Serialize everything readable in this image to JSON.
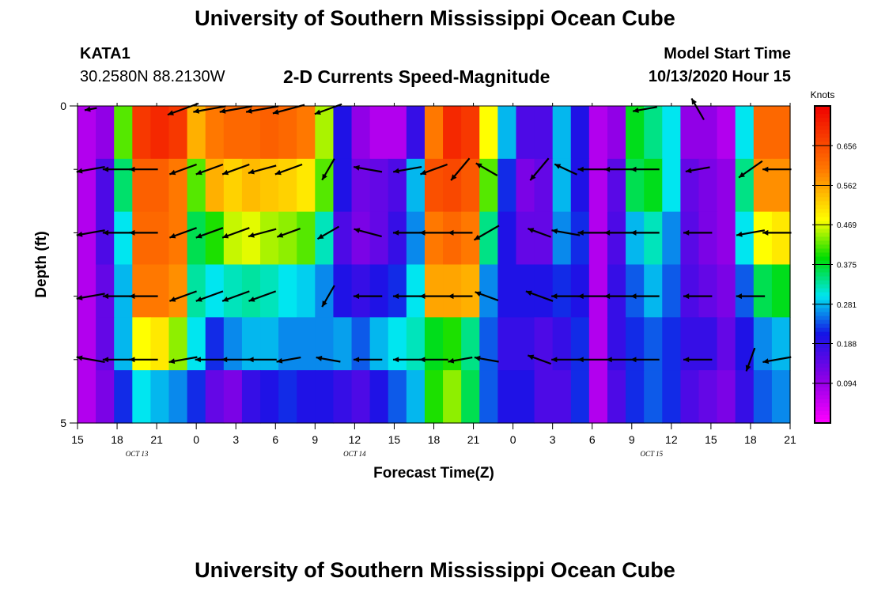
{
  "header": {
    "title": "University of Southern Mississippi Ocean Cube",
    "station": "KATA1",
    "coords": "30.2580N 88.2130W",
    "subtitle": "2-D Currents Speed-Magnitude",
    "model_start_label": "Model Start Time",
    "model_start_value": "10/13/2020 Hour 15"
  },
  "footer": {
    "title": "University of Southern Mississippi Ocean Cube"
  },
  "chart_data": {
    "type": "heatmap",
    "title": "2-D Currents Speed-Magnitude",
    "xlabel": "Forecast Time(Z)",
    "ylabel": "Depth (ft)",
    "x_ticks": [
      "15",
      "18",
      "21",
      "0",
      "3",
      "6",
      "9",
      "12",
      "15",
      "18",
      "21",
      "0",
      "3",
      "6",
      "9",
      "12",
      "15",
      "18",
      "21"
    ],
    "date_labels": [
      {
        "label": "OCT 13",
        "tick_index": 1.5
      },
      {
        "label": "OCT 14",
        "tick_index": 7
      },
      {
        "label": "OCT 15",
        "tick_index": 14.5
      }
    ],
    "y_ticks": [
      "0",
      "5"
    ],
    "ylim": [
      0,
      5
    ],
    "x_hours": [
      0,
      54
    ],
    "colorbar": {
      "unit": "Knots",
      "range": [
        0.0,
        0.75
      ],
      "tick_labels": [
        "0.656",
        "0.562",
        "0.469",
        "0.375",
        "0.281",
        "0.188",
        "0.094"
      ],
      "tick_values": [
        0.656,
        0.562,
        0.469,
        0.375,
        0.281,
        0.188,
        0.094
      ]
    },
    "speed_profiles": [
      [
        0.07,
        0.1,
        0.42,
        0.68,
        0.7,
        0.68,
        0.55,
        0.6,
        0.62,
        0.62,
        0.63,
        0.62,
        0.6,
        0.45,
        0.2,
        0.1,
        0.07,
        0.07,
        0.18,
        0.6,
        0.7,
        0.68,
        0.48,
        0.28,
        0.16,
        0.16,
        0.28,
        0.2,
        0.07,
        0.1,
        0.38,
        0.34,
        0.3,
        0.1,
        0.1,
        0.07,
        0.3,
        0.62,
        0.62
      ],
      [
        0.07,
        0.16,
        0.35,
        0.63,
        0.63,
        0.6,
        0.42,
        0.55,
        0.52,
        0.54,
        0.53,
        0.52,
        0.5,
        0.42,
        0.2,
        0.13,
        0.14,
        0.16,
        0.28,
        0.65,
        0.66,
        0.64,
        0.42,
        0.22,
        0.12,
        0.14,
        0.28,
        0.2,
        0.07,
        0.15,
        0.36,
        0.38,
        0.3,
        0.14,
        0.12,
        0.1,
        0.34,
        0.58,
        0.58
      ],
      [
        0.07,
        0.16,
        0.3,
        0.62,
        0.62,
        0.6,
        0.36,
        0.4,
        0.46,
        0.47,
        0.45,
        0.44,
        0.42,
        0.32,
        0.16,
        0.12,
        0.14,
        0.18,
        0.26,
        0.6,
        0.62,
        0.6,
        0.34,
        0.2,
        0.14,
        0.14,
        0.26,
        0.22,
        0.07,
        0.16,
        0.28,
        0.32,
        0.26,
        0.15,
        0.12,
        0.1,
        0.3,
        0.48,
        0.5
      ],
      [
        0.07,
        0.14,
        0.28,
        0.6,
        0.6,
        0.58,
        0.33,
        0.3,
        0.32,
        0.33,
        0.32,
        0.3,
        0.29,
        0.26,
        0.2,
        0.18,
        0.2,
        0.22,
        0.3,
        0.56,
        0.56,
        0.55,
        0.26,
        0.2,
        0.2,
        0.2,
        0.22,
        0.2,
        0.07,
        0.18,
        0.24,
        0.28,
        0.24,
        0.16,
        0.14,
        0.12,
        0.24,
        0.36,
        0.38
      ],
      [
        0.07,
        0.14,
        0.28,
        0.48,
        0.5,
        0.44,
        0.3,
        0.22,
        0.26,
        0.28,
        0.28,
        0.26,
        0.26,
        0.26,
        0.27,
        0.24,
        0.28,
        0.3,
        0.32,
        0.38,
        0.4,
        0.34,
        0.24,
        0.18,
        0.18,
        0.16,
        0.18,
        0.22,
        0.07,
        0.18,
        0.22,
        0.24,
        0.22,
        0.18,
        0.18,
        0.14,
        0.2,
        0.26,
        0.28
      ],
      [
        0.07,
        0.12,
        0.22,
        0.3,
        0.28,
        0.26,
        0.22,
        0.14,
        0.12,
        0.18,
        0.2,
        0.22,
        0.2,
        0.2,
        0.18,
        0.16,
        0.2,
        0.24,
        0.28,
        0.4,
        0.44,
        0.36,
        0.24,
        0.2,
        0.2,
        0.16,
        0.16,
        0.22,
        0.07,
        0.16,
        0.22,
        0.24,
        0.22,
        0.16,
        0.14,
        0.12,
        0.18,
        0.24,
        0.26
      ]
    ],
    "vector_rows_depth_ft": [
      0,
      1,
      2,
      3,
      4,
      5
    ],
    "vector_hours": [
      1,
      3,
      5,
      8,
      10,
      12,
      14,
      16,
      19,
      22,
      25,
      27,
      29,
      31,
      35,
      37,
      39,
      41,
      43,
      47,
      49,
      51,
      53
    ],
    "vector_angles_deg": [
      [
        190,
        185,
        190,
        200,
        190,
        190,
        190,
        195,
        200,
        0,
        180,
        180,
        0,
        0,
        0,
        0,
        0,
        0,
        190,
        120,
        0,
        0,
        0
      ],
      [
        190,
        180,
        180,
        200,
        200,
        200,
        195,
        200,
        240,
        170,
        190,
        200,
        230,
        150,
        230,
        155,
        180,
        180,
        180,
        190,
        0,
        215,
        180
      ],
      [
        190,
        180,
        180,
        200,
        200,
        200,
        195,
        200,
        210,
        165,
        180,
        180,
        180,
        210,
        160,
        170,
        180,
        180,
        180,
        180,
        0,
        190,
        180
      ],
      [
        190,
        180,
        180,
        200,
        200,
        200,
        200,
        0,
        240,
        180,
        180,
        180,
        180,
        160,
        160,
        180,
        180,
        180,
        180,
        180,
        0,
        180,
        0
      ],
      [
        170,
        180,
        180,
        190,
        180,
        180,
        180,
        190,
        170,
        180,
        180,
        180,
        190,
        170,
        160,
        180,
        180,
        180,
        180,
        180,
        0,
        250,
        190
      ],
      [
        0,
        0,
        0,
        0,
        0,
        0,
        0,
        0,
        0,
        0,
        0,
        0,
        0,
        0,
        0,
        0,
        0,
        0,
        0,
        0,
        0,
        0,
        0
      ]
    ],
    "vector_lengths": [
      [
        0.3,
        0.0,
        0.0,
        0.8,
        0.8,
        0.8,
        0.8,
        0.8,
        0.7,
        0.0,
        0.0,
        0.0,
        0.0,
        0.0,
        0.0,
        0.0,
        0.0,
        0.0,
        0.6,
        0.6,
        0.0,
        0.0,
        0.0
      ],
      [
        0.7,
        0.7,
        0.7,
        0.7,
        0.7,
        0.7,
        0.7,
        0.7,
        0.6,
        0.7,
        0.7,
        0.7,
        0.7,
        0.6,
        0.7,
        0.6,
        0.7,
        0.7,
        0.7,
        0.6,
        0.0,
        0.7,
        0.7
      ],
      [
        0.7,
        0.7,
        0.7,
        0.7,
        0.7,
        0.7,
        0.7,
        0.6,
        0.6,
        0.7,
        0.7,
        0.7,
        0.6,
        0.7,
        0.6,
        0.7,
        0.7,
        0.7,
        0.7,
        0.7,
        0.0,
        0.7,
        0.7
      ],
      [
        0.7,
        0.7,
        0.7,
        0.7,
        0.7,
        0.7,
        0.7,
        0.0,
        0.6,
        0.7,
        0.7,
        0.7,
        0.6,
        0.6,
        0.7,
        0.7,
        0.7,
        0.7,
        0.7,
        0.7,
        0.0,
        0.7,
        0.0
      ],
      [
        0.7,
        0.7,
        0.7,
        0.7,
        0.7,
        0.7,
        0.7,
        0.6,
        0.6,
        0.7,
        0.7,
        0.7,
        0.6,
        0.6,
        0.6,
        0.7,
        0.7,
        0.6,
        0.7,
        0.7,
        0.0,
        0.6,
        0.7
      ],
      [
        0.0,
        0.0,
        0.0,
        0.0,
        0.0,
        0.0,
        0.0,
        0.0,
        0.0,
        0.0,
        0.0,
        0.0,
        0.0,
        0.0,
        0.0,
        0.0,
        0.0,
        0.0,
        0.0,
        0.0,
        0.0,
        0.0,
        0.0
      ]
    ]
  }
}
